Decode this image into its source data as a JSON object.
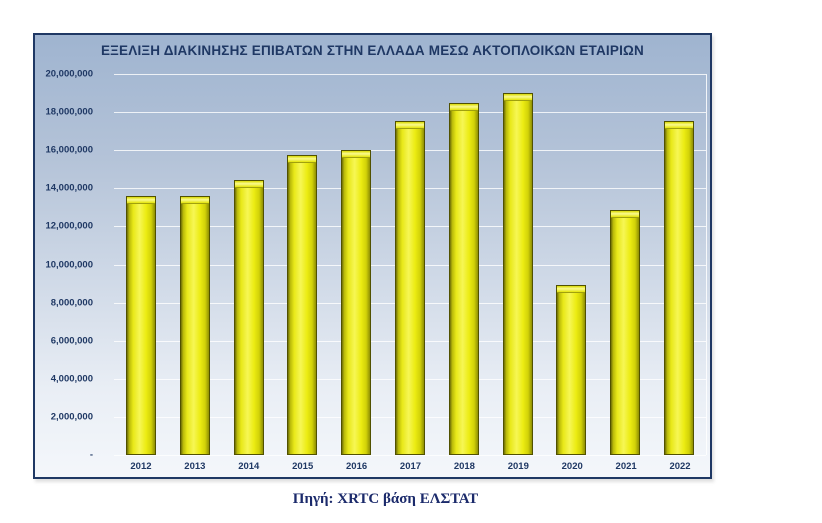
{
  "page": {
    "background": "#ffffff",
    "caption": "Πηγή: XRTC βάση ΕΛΣΤΑΤ"
  },
  "chart_data": {
    "type": "bar",
    "title": "ΕΞΕΛΙΞΗ ΔΙΑΚΙΝΗΣΗΣ ΕΠΙΒΑΤΩΝ ΣΤΗΝ ΕΛΛΑΔΑ ΜΕΣΩ ΑΚΤΟΠΛΟΙΚΩΝ ΕΤΑΙΡΙΩΝ",
    "categories": [
      "2012",
      "2013",
      "2014",
      "2015",
      "2016",
      "2017",
      "2018",
      "2019",
      "2020",
      "2021",
      "2022"
    ],
    "values": [
      13600000,
      13600000,
      14450000,
      15750000,
      16000000,
      17550000,
      18500000,
      19000000,
      8900000,
      12850000,
      17550000
    ],
    "xlabel": "",
    "ylabel": "",
    "ylim": [
      0,
      20000000
    ],
    "y_tick_step": 2000000,
    "y_tick_labels_top_to_bottom": [
      "20,000,000",
      "18,000,000",
      "16,000,000",
      "14,000,000",
      "12,000,000",
      "10,000,000",
      "8,000,000",
      "6,000,000",
      "4,000,000",
      "2,000,000",
      "-"
    ],
    "grid": true,
    "legend": false,
    "colors": {
      "bar_fill": "#ebeb10",
      "bar_highlight": "#f7f755",
      "bar_edge": "#515100",
      "frame_border": "#1f3864",
      "text": "#1f3864",
      "caption_text": "#1b2a6b",
      "plot_bg_top": "#9fb4d0",
      "plot_bg_bottom": "#f4f7fb",
      "gridline": "#ffffff"
    }
  }
}
